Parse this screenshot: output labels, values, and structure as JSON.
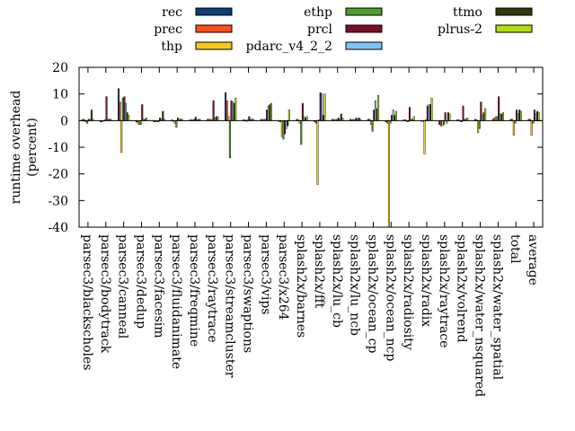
{
  "chart_data": {
    "type": "bar",
    "ylabel": "runtime overhead (percent)",
    "ylabel_lines": [
      "runtime overhead",
      "(percent)"
    ],
    "ylim": [
      -40,
      20
    ],
    "yticks": [
      -40,
      -30,
      -20,
      -10,
      0,
      10,
      20
    ],
    "grid": false,
    "legend_position": "top",
    "categories": [
      "parsec3/blackscholes",
      "parsec3/bodytrack",
      "parsec3/canneal",
      "parsec3/dedup",
      "parsec3/facesim",
      "parsec3/fluidanimate",
      "parsec3/freqmine",
      "parsec3/raytrace",
      "parsec3/streamcluster",
      "parsec3/swaptions",
      "parsec3/vips",
      "parsec3/x264",
      "splash2x/barnes",
      "splash2x/fft",
      "splash2x/lu_cb",
      "splash2x/lu_ncb",
      "splash2x/ocean_cp",
      "splash2x/ocean_ncp",
      "splash2x/radiosity",
      "splash2x/radix",
      "splash2x/raytrace",
      "splash2x/volrend",
      "splash2x/water_nsquared",
      "splash2x/water_spatial",
      "total",
      "average"
    ],
    "series": [
      {
        "name": "rec",
        "color": "#0b3d7a",
        "values": [
          0.5,
          -0.5,
          12,
          -0.5,
          -0.5,
          0.3,
          0.3,
          0.5,
          10.5,
          0.3,
          0.5,
          -0.3,
          0.5,
          -0.5,
          0.5,
          0.5,
          0.5,
          -0.5,
          0.3,
          -0.3,
          -1.5,
          0.3,
          0.5,
          0.5,
          0.5,
          0.5
        ]
      },
      {
        "name": "prec",
        "color": "#ff4f19",
        "values": [
          0.3,
          -0.3,
          7,
          -1.0,
          -0.3,
          -0.3,
          0.3,
          0.5,
          7.5,
          0.3,
          0.3,
          -0.5,
          0.3,
          -1.0,
          0.3,
          0.3,
          0.5,
          -1.0,
          0.3,
          -0.3,
          -2.0,
          0.3,
          0.3,
          1.0,
          0.5,
          0.5
        ]
      },
      {
        "name": "thp",
        "color": "#f7c918",
        "values": [
          -0.5,
          -0.3,
          -12,
          -1.5,
          -0.5,
          -1.0,
          0.3,
          0.5,
          1.5,
          -0.3,
          0.5,
          -6.0,
          -1.0,
          -24,
          0.5,
          0.5,
          -1.5,
          -41,
          -0.3,
          -12.5,
          -2.0,
          -0.3,
          -4.5,
          1.5,
          -5.5,
          -5.5
        ]
      },
      {
        "name": "ethp",
        "color": "#4aa02c",
        "values": [
          -1.0,
          0.3,
          8.5,
          -1.5,
          -0.5,
          -2.5,
          0.5,
          0.3,
          -14,
          0.3,
          0.5,
          -7.0,
          -9.0,
          0.3,
          0.3,
          0.3,
          -4.0,
          -1.0,
          -0.5,
          0.3,
          -1.5,
          -0.5,
          -3.0,
          1.5,
          -1.0,
          -1.0
        ]
      },
      {
        "name": "prcl",
        "color": "#7a0f2a",
        "values": [
          0.5,
          9.0,
          9.0,
          6.0,
          1.0,
          1.0,
          1.3,
          7.5,
          7.5,
          1.5,
          4.0,
          -5.0,
          6.5,
          10.5,
          1.0,
          1.0,
          4.0,
          2.0,
          5.0,
          5.5,
          3.0,
          5.5,
          7.0,
          9.0,
          4.0,
          4.0
        ]
      },
      {
        "name": "pdarc_v4_2_2",
        "color": "#7dc4ff",
        "values": [
          0.5,
          0.5,
          6.5,
          0.5,
          0.5,
          0.5,
          0.3,
          1.0,
          7.0,
          0.5,
          5.5,
          -3.0,
          1.5,
          10.0,
          0.5,
          0.5,
          7.5,
          4.0,
          0.5,
          6.0,
          -1.0,
          0.5,
          2.0,
          2.5,
          2.5,
          2.5
        ]
      },
      {
        "name": "ttmo",
        "color": "#2f3a0c",
        "values": [
          4.0,
          0.5,
          3.0,
          0.5,
          3.5,
          0.5,
          0.5,
          1.5,
          6.5,
          0.5,
          6.0,
          -2.0,
          1.0,
          2.0,
          2.5,
          1.0,
          4.5,
          2.0,
          0.5,
          6.0,
          3.0,
          0.5,
          3.0,
          2.5,
          4.0,
          3.5
        ]
      },
      {
        "name": "plrus-2",
        "color": "#b5dc10",
        "values": [
          0.5,
          0.5,
          2.0,
          1.0,
          0.5,
          0.5,
          0.5,
          1.5,
          8.5,
          0.5,
          6.5,
          4.0,
          1.5,
          10.0,
          1.0,
          0.5,
          9.5,
          3.5,
          1.5,
          8.5,
          2.5,
          1.0,
          4.5,
          3.0,
          3.5,
          3.0
        ]
      }
    ]
  }
}
